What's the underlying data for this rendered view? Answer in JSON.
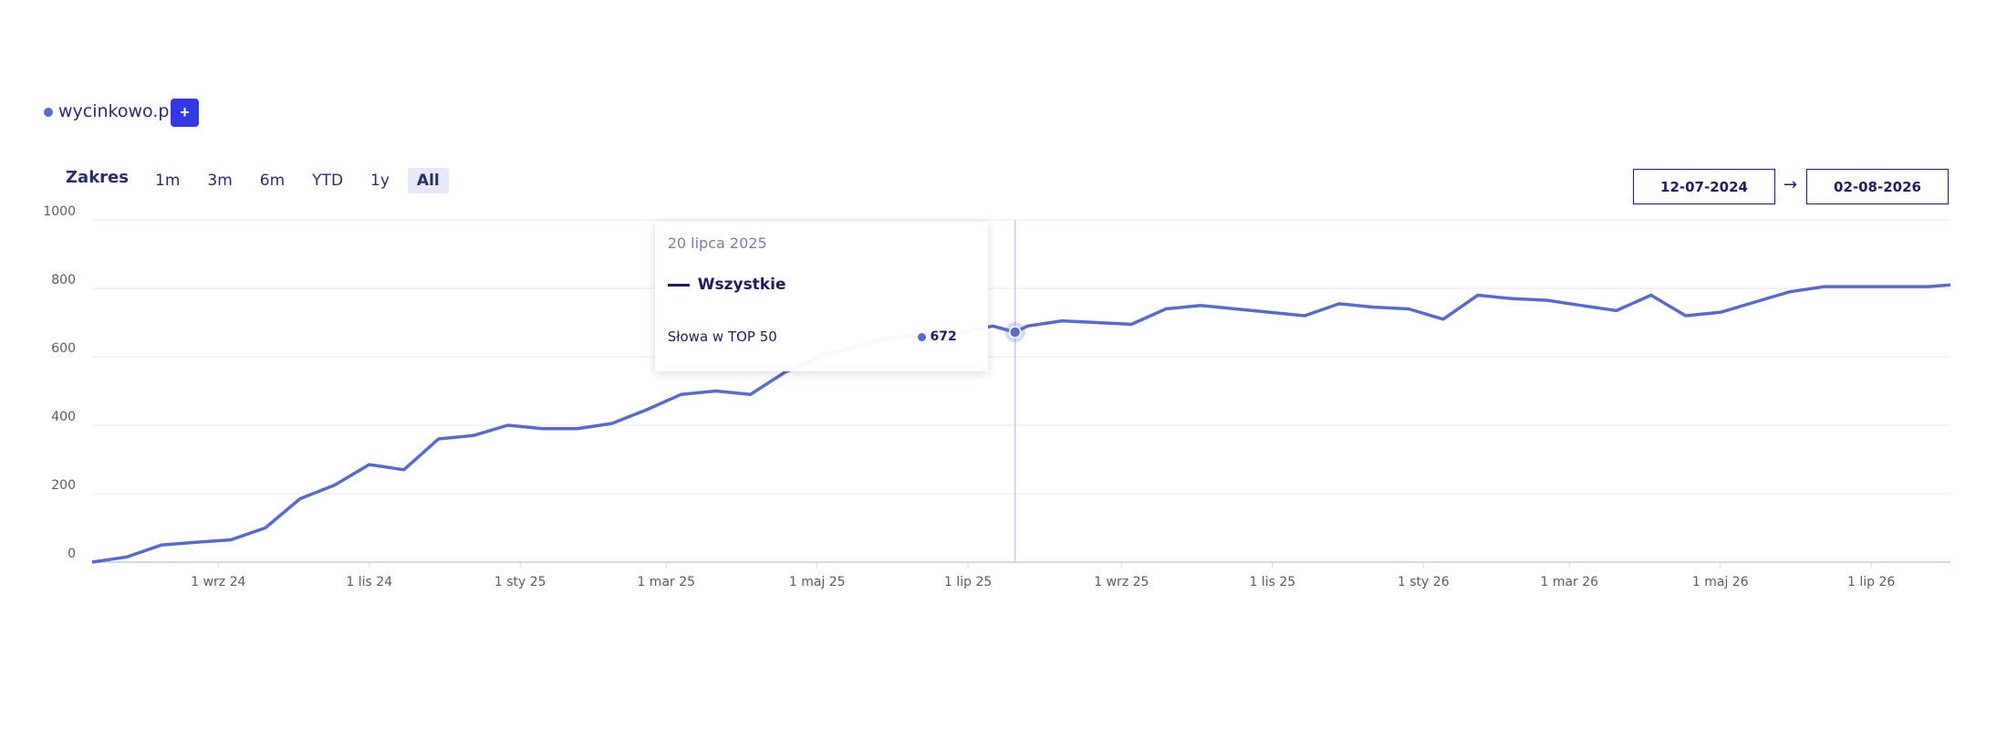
{
  "header": {
    "legend_label": "wycinkowo.pl",
    "add_button": "+",
    "range_label": "Zakres",
    "range_options": [
      "1m",
      "3m",
      "6m",
      "YTD",
      "1y",
      "All"
    ],
    "date_from": "12-07-2024",
    "arrow": "→",
    "date_to": "02-08-2026"
  },
  "chart_data": {
    "type": "line",
    "x": [
      "2024-07-12",
      "2024-07-26",
      "2024-08-09",
      "2024-08-23",
      "2024-09-06",
      "2024-09-20",
      "2024-10-04",
      "2024-10-18",
      "2024-11-01",
      "2024-11-15",
      "2024-11-29",
      "2024-12-13",
      "2024-12-27",
      "2025-01-10",
      "2025-01-24",
      "2025-02-07",
      "2025-02-21",
      "2025-03-07",
      "2025-03-21",
      "2025-04-04",
      "2025-04-18",
      "2025-05-02",
      "2025-05-16",
      "2025-05-30",
      "2025-06-13",
      "2025-06-27",
      "2025-07-11",
      "2025-07-20",
      "2025-07-25",
      "2025-08-08",
      "2025-08-22",
      "2025-09-05",
      "2025-09-19",
      "2025-10-03",
      "2025-10-17",
      "2025-10-31",
      "2025-11-14",
      "2025-11-28",
      "2025-12-12",
      "2025-12-26",
      "2026-01-09",
      "2026-01-23",
      "2026-02-06",
      "2026-02-20",
      "2026-03-06",
      "2026-03-20",
      "2026-04-03",
      "2026-04-17",
      "2026-05-01",
      "2026-05-15",
      "2026-05-29",
      "2026-06-12",
      "2026-06-26",
      "2026-07-10",
      "2026-07-24",
      "2026-08-02"
    ],
    "series": [
      {
        "name": "wycinkowo.pl",
        "color": "#5a6bc4",
        "values": [
          0,
          15,
          50,
          58,
          65,
          100,
          185,
          225,
          285,
          270,
          360,
          370,
          400,
          390,
          390,
          405,
          445,
          490,
          500,
          490,
          555,
          600,
          630,
          655,
          665,
          670,
          690,
          672,
          690,
          705,
          700,
          695,
          740,
          750,
          740,
          730,
          720,
          755,
          745,
          740,
          710,
          780,
          770,
          765,
          750,
          735,
          780,
          720,
          730,
          760,
          790,
          805,
          805,
          805,
          805,
          810
        ]
      }
    ],
    "ylim": [
      0,
      1000
    ],
    "yticks": [
      0,
      200,
      400,
      600,
      800,
      1000
    ],
    "xlim": [
      "2024-07-12",
      "2026-08-02"
    ],
    "xticks": [
      {
        "value": "2024-09-01",
        "label": "1 wrz 24"
      },
      {
        "value": "2024-11-01",
        "label": "1 lis 24"
      },
      {
        "value": "2025-01-01",
        "label": "1 sty 25"
      },
      {
        "value": "2025-03-01",
        "label": "1 mar 25"
      },
      {
        "value": "2025-05-01",
        "label": "1 maj 25"
      },
      {
        "value": "2025-07-01",
        "label": "1 lip 25"
      },
      {
        "value": "2025-09-01",
        "label": "1 wrz 25"
      },
      {
        "value": "2025-11-01",
        "label": "1 lis 25"
      },
      {
        "value": "2026-01-01",
        "label": "1 sty 26"
      },
      {
        "value": "2026-03-01",
        "label": "1 mar 26"
      },
      {
        "value": "2026-05-01",
        "label": "1 maj 26"
      },
      {
        "value": "2026-07-01",
        "label": "1 lip 26"
      }
    ],
    "grid": true,
    "tooltip": {
      "date": "20 lipca 2025",
      "series_label": "Wszystkie",
      "metric": "Słowa w TOP 50"
    }
  }
}
